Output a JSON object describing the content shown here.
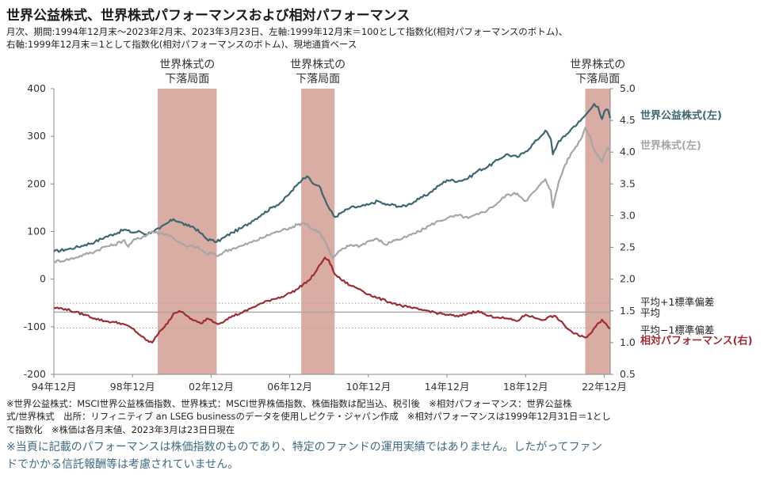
{
  "header": {
    "title": "世界公益株式、世界株式パフォーマンスおよび相対パフォーマンス",
    "subtitle_line1": "月次、期間:1994年12月末～2023年2月末、2023年3月23日、左軸:1999年12月末＝100として指数化(相対パフォーマンスのボトム)、",
    "subtitle_line2": "右軸:1999年12月末＝1として指数化(相対パフォーマンスのボトム)、現地通貨ベース"
  },
  "chart_data": {
    "type": "line",
    "x_start": 1994.917,
    "x_end": 2023.22,
    "x_tick_labels": [
      "94年12月",
      "98年12月",
      "02年12月",
      "06年12月",
      "10年12月",
      "14年12月",
      "18年12月",
      "22年12月"
    ],
    "x_tick_years": [
      1994.917,
      1998.917,
      2002.917,
      2006.917,
      2010.917,
      2014.917,
      2018.917,
      2022.917
    ],
    "y_left": {
      "min": -200,
      "max": 400,
      "ticks": [
        "400",
        "300",
        "200",
        "100",
        "0",
        "-100",
        "-200"
      ]
    },
    "y_right": {
      "min": 0.5,
      "max": 5.0,
      "ticks": [
        "5.0",
        "4.5",
        "4.0",
        "3.5",
        "3.0",
        "2.5",
        "2.0",
        "1.5",
        "1.0",
        "0.5"
      ]
    },
    "colors": {
      "utility": "#3d6670",
      "world": "#a6a6a6",
      "relative": "#9b2d35",
      "shade": "#d9aca4",
      "ref": "#aaaaaa"
    },
    "shaded_periods": [
      {
        "label_line1": "世界株式の",
        "label_line2": "下落局面",
        "start": 2000.2,
        "end": 2003.2
      },
      {
        "label_line1": "世界株式の",
        "label_line2": "下落局面",
        "start": 2007.5,
        "end": 2009.2
      },
      {
        "label_line1": "世界株式の",
        "label_line2": "下落局面",
        "start": 2021.95,
        "end": 2023.22
      }
    ],
    "series": [
      {
        "name": "世界公益株式(左)",
        "axis": "left",
        "points": [
          [
            1994.92,
            58
          ],
          [
            1995.5,
            62
          ],
          [
            1996.0,
            66
          ],
          [
            1996.5,
            72
          ],
          [
            1997.0,
            78
          ],
          [
            1997.5,
            88
          ],
          [
            1998.0,
            95
          ],
          [
            1998.5,
            104
          ],
          [
            1998.9,
            98
          ],
          [
            1999.3,
            100
          ],
          [
            1999.6,
            94
          ],
          [
            1999.92,
            100
          ],
          [
            2000.3,
            106
          ],
          [
            2000.7,
            118
          ],
          [
            2001.0,
            126
          ],
          [
            2001.3,
            120
          ],
          [
            2001.7,
            112
          ],
          [
            2002.0,
            110
          ],
          [
            2002.4,
            96
          ],
          [
            2002.7,
            84
          ],
          [
            2002.92,
            82
          ],
          [
            2003.2,
            78
          ],
          [
            2003.6,
            88
          ],
          [
            2004.0,
            98
          ],
          [
            2004.5,
            108
          ],
          [
            2005.0,
            122
          ],
          [
            2005.5,
            136
          ],
          [
            2006.0,
            150
          ],
          [
            2006.5,
            162
          ],
          [
            2006.92,
            180
          ],
          [
            2007.3,
            198
          ],
          [
            2007.6,
            212
          ],
          [
            2007.8,
            216
          ],
          [
            2008.0,
            206
          ],
          [
            2008.4,
            196
          ],
          [
            2008.7,
            168
          ],
          [
            2008.9,
            150
          ],
          [
            2009.2,
            130
          ],
          [
            2009.5,
            138
          ],
          [
            2010.0,
            150
          ],
          [
            2010.5,
            152
          ],
          [
            2010.92,
            156
          ],
          [
            2011.4,
            164
          ],
          [
            2011.8,
            156
          ],
          [
            2012.2,
            156
          ],
          [
            2012.6,
            152
          ],
          [
            2012.92,
            156
          ],
          [
            2013.5,
            168
          ],
          [
            2014.0,
            180
          ],
          [
            2014.5,
            196
          ],
          [
            2014.92,
            208
          ],
          [
            2015.5,
            206
          ],
          [
            2016.0,
            212
          ],
          [
            2016.5,
            228
          ],
          [
            2017.0,
            236
          ],
          [
            2017.5,
            250
          ],
          [
            2017.92,
            262
          ],
          [
            2018.5,
            256
          ],
          [
            2018.92,
            268
          ],
          [
            2019.5,
            292
          ],
          [
            2019.92,
            312
          ],
          [
            2020.2,
            294
          ],
          [
            2020.3,
            262
          ],
          [
            2020.6,
            290
          ],
          [
            2020.92,
            300
          ],
          [
            2021.3,
            318
          ],
          [
            2021.7,
            332
          ],
          [
            2021.95,
            344
          ],
          [
            2022.2,
            356
          ],
          [
            2022.4,
            368
          ],
          [
            2022.6,
            362
          ],
          [
            2022.8,
            336
          ],
          [
            2022.92,
            352
          ],
          [
            2023.1,
            356
          ],
          [
            2023.22,
            338
          ]
        ]
      },
      {
        "name": "世界株式(左)",
        "axis": "left",
        "points": [
          [
            1994.92,
            37
          ],
          [
            1995.5,
            40
          ],
          [
            1996.0,
            45
          ],
          [
            1996.5,
            52
          ],
          [
            1997.0,
            58
          ],
          [
            1997.5,
            68
          ],
          [
            1998.0,
            72
          ],
          [
            1998.5,
            82
          ],
          [
            1998.7,
            68
          ],
          [
            1998.92,
            80
          ],
          [
            1999.5,
            90
          ],
          [
            1999.92,
            100
          ],
          [
            2000.3,
            96
          ],
          [
            2000.7,
            94
          ],
          [
            2001.0,
            86
          ],
          [
            2001.4,
            74
          ],
          [
            2001.7,
            68
          ],
          [
            2002.0,
            70
          ],
          [
            2002.4,
            62
          ],
          [
            2002.7,
            52
          ],
          [
            2002.92,
            56
          ],
          [
            2003.2,
            48
          ],
          [
            2003.6,
            58
          ],
          [
            2004.0,
            64
          ],
          [
            2004.5,
            70
          ],
          [
            2005.0,
            78
          ],
          [
            2005.5,
            86
          ],
          [
            2006.0,
            96
          ],
          [
            2006.5,
            102
          ],
          [
            2006.92,
            108
          ],
          [
            2007.3,
            114
          ],
          [
            2007.6,
            118
          ],
          [
            2007.8,
            116
          ],
          [
            2008.0,
            106
          ],
          [
            2008.4,
            100
          ],
          [
            2008.7,
            80
          ],
          [
            2008.9,
            62
          ],
          [
            2009.1,
            44
          ],
          [
            2009.2,
            48
          ],
          [
            2009.5,
            60
          ],
          [
            2010.0,
            72
          ],
          [
            2010.5,
            70
          ],
          [
            2010.92,
            80
          ],
          [
            2011.4,
            84
          ],
          [
            2011.8,
            72
          ],
          [
            2012.2,
            82
          ],
          [
            2012.6,
            84
          ],
          [
            2012.92,
            90
          ],
          [
            2013.5,
            100
          ],
          [
            2014.0,
            112
          ],
          [
            2014.5,
            122
          ],
          [
            2014.92,
            128
          ],
          [
            2015.5,
            134
          ],
          [
            2016.0,
            128
          ],
          [
            2016.5,
            136
          ],
          [
            2017.0,
            146
          ],
          [
            2017.5,
            160
          ],
          [
            2017.92,
            176
          ],
          [
            2018.5,
            180
          ],
          [
            2018.92,
            164
          ],
          [
            2019.5,
            190
          ],
          [
            2019.92,
            210
          ],
          [
            2020.2,
            186
          ],
          [
            2020.3,
            150
          ],
          [
            2020.6,
            204
          ],
          [
            2020.92,
            240
          ],
          [
            2021.3,
            268
          ],
          [
            2021.7,
            292
          ],
          [
            2021.95,
            318
          ],
          [
            2022.2,
            300
          ],
          [
            2022.4,
            272
          ],
          [
            2022.6,
            260
          ],
          [
            2022.8,
            246
          ],
          [
            2022.92,
            262
          ],
          [
            2023.1,
            276
          ],
          [
            2023.22,
            266
          ]
        ]
      },
      {
        "name": "相対パフォーマンス(右)",
        "axis": "right",
        "points": [
          [
            1994.92,
            1.55
          ],
          [
            1995.5,
            1.53
          ],
          [
            1996.0,
            1.48
          ],
          [
            1996.5,
            1.44
          ],
          [
            1997.0,
            1.38
          ],
          [
            1997.5,
            1.34
          ],
          [
            1998.0,
            1.32
          ],
          [
            1998.4,
            1.3
          ],
          [
            1998.92,
            1.22
          ],
          [
            1999.3,
            1.12
          ],
          [
            1999.6,
            1.04
          ],
          [
            1999.92,
            1.0
          ],
          [
            2000.3,
            1.18
          ],
          [
            2000.7,
            1.3
          ],
          [
            2001.0,
            1.46
          ],
          [
            2001.3,
            1.5
          ],
          [
            2001.7,
            1.42
          ],
          [
            2002.0,
            1.35
          ],
          [
            2002.4,
            1.3
          ],
          [
            2002.7,
            1.38
          ],
          [
            2002.92,
            1.36
          ],
          [
            2003.2,
            1.3
          ],
          [
            2003.6,
            1.34
          ],
          [
            2004.0,
            1.42
          ],
          [
            2004.5,
            1.47
          ],
          [
            2005.0,
            1.55
          ],
          [
            2005.5,
            1.62
          ],
          [
            2006.0,
            1.68
          ],
          [
            2006.5,
            1.72
          ],
          [
            2006.92,
            1.78
          ],
          [
            2007.3,
            1.84
          ],
          [
            2007.6,
            1.92
          ],
          [
            2007.9,
            1.98
          ],
          [
            2008.2,
            2.1
          ],
          [
            2008.5,
            2.24
          ],
          [
            2008.7,
            2.34
          ],
          [
            2008.9,
            2.3
          ],
          [
            2009.2,
            2.08
          ],
          [
            2009.5,
            2.0
          ],
          [
            2010.0,
            1.9
          ],
          [
            2010.5,
            1.84
          ],
          [
            2010.92,
            1.76
          ],
          [
            2011.4,
            1.7
          ],
          [
            2011.8,
            1.66
          ],
          [
            2012.2,
            1.62
          ],
          [
            2012.6,
            1.58
          ],
          [
            2012.92,
            1.56
          ],
          [
            2013.5,
            1.52
          ],
          [
            2014.0,
            1.5
          ],
          [
            2014.5,
            1.46
          ],
          [
            2014.92,
            1.44
          ],
          [
            2015.5,
            1.41
          ],
          [
            2016.0,
            1.46
          ],
          [
            2016.5,
            1.5
          ],
          [
            2017.0,
            1.42
          ],
          [
            2017.5,
            1.4
          ],
          [
            2017.92,
            1.38
          ],
          [
            2018.5,
            1.34
          ],
          [
            2018.92,
            1.44
          ],
          [
            2019.5,
            1.38
          ],
          [
            2019.92,
            1.36
          ],
          [
            2020.2,
            1.42
          ],
          [
            2020.5,
            1.4
          ],
          [
            2020.92,
            1.26
          ],
          [
            2021.3,
            1.16
          ],
          [
            2021.7,
            1.1
          ],
          [
            2021.95,
            1.08
          ],
          [
            2022.2,
            1.14
          ],
          [
            2022.5,
            1.26
          ],
          [
            2022.8,
            1.36
          ],
          [
            2023.0,
            1.3
          ],
          [
            2023.22,
            1.22
          ]
        ]
      }
    ],
    "reference_lines": [
      {
        "label": "平均+1標準偏差",
        "value": 1.62,
        "style": "dotted"
      },
      {
        "label": "平均",
        "value": 1.48,
        "style": "solid"
      },
      {
        "label": "平均−1標準偏差",
        "value": 1.23,
        "style": "dotted"
      }
    ],
    "legend": {
      "utility": "世界公益株式(左)",
      "world": "世界株式(左)",
      "relative": "相対パフォーマンス(右)"
    }
  },
  "notes": {
    "line1": "※世界公益株式：MSCI世界公益株価指数、世界株式：MSCI世界株価指数、株価指数は配当込、税引後　※相対パフォーマンス：世界公益株",
    "line2": "式/世界株式　出所：リフィニティブ an LSEG businessのデータを使用しピクテ・ジャパン作成　※相対パフォーマンスは1999年12月31日＝1とし",
    "line3": "て指数化　※株価は各月末値、2023年3月は23日日現在"
  },
  "disclaimer": {
    "line1": "※当頁に記載のパフォーマンスは株価指数のものであり、特定のファンドの運用実績ではありません。したがってファン",
    "line2": "ドでかかる信託報酬等は考慮されていません。"
  }
}
